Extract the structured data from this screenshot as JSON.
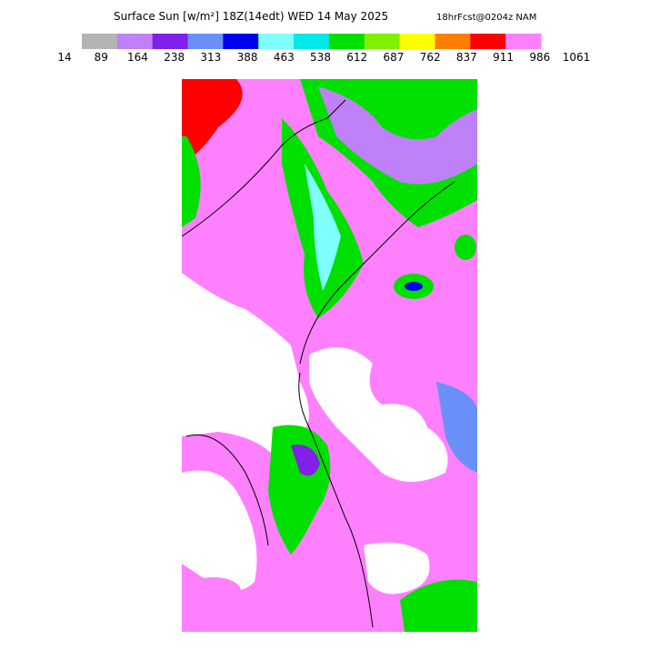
{
  "header": {
    "title": "Surface Sun [w/m²] 18Z(14edt) WED 14 May 2025",
    "subtitle": "18hrFcst@0204z NAM"
  },
  "colorbar": {
    "colors": [
      "#b4b4b4",
      "#c080f8",
      "#8020e8",
      "#6890f8",
      "#0000f0",
      "#80ffff",
      "#00e8e8",
      "#00e000",
      "#80f000",
      "#ffff00",
      "#ff8000",
      "#ff0000",
      "#ff80ff"
    ],
    "labels": [
      14,
      89,
      164,
      238,
      313,
      388,
      463,
      538,
      612,
      687,
      762,
      837,
      911,
      986,
      1061
    ]
  }
}
